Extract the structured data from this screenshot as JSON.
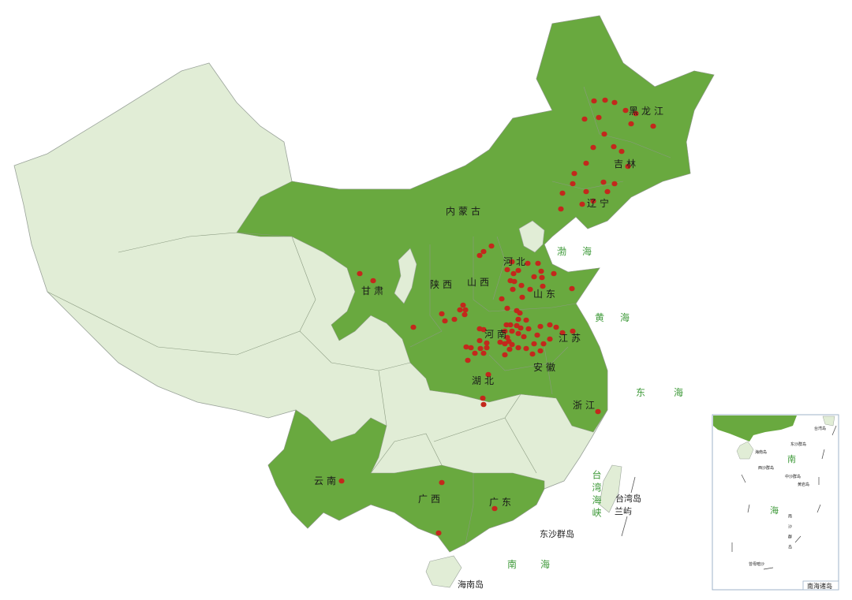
{
  "colors": {
    "highlighted": "#69a93f",
    "other": "#e1edd6",
    "dot": "#c3281c",
    "sea_label": "#3f9a3a",
    "border": "#9aa39a"
  },
  "provinces_highlighted": [
    "黑龙江",
    "吉林",
    "辽宁",
    "内蒙古",
    "河北",
    "山西",
    "陕西",
    "甘肃",
    "山东",
    "河南",
    "江苏",
    "安徽",
    "湖北",
    "浙江",
    "云南",
    "广西",
    "广东"
  ],
  "labels": {
    "heilongjiang": "黑龙江",
    "jilin": "吉林",
    "liaoning": "辽宁",
    "neimenggu": "内蒙古",
    "hebei": "河北",
    "shanxi": "山西",
    "shaanxi": "陕西",
    "gansu": "甘肃",
    "shandong": "山东",
    "henan": "河南",
    "jiangsu": "江苏",
    "anhui": "安徽",
    "hubei": "湖北",
    "zhejiang": "浙江",
    "yunnan": "云南",
    "guangxi": "广西",
    "guangdong": "广东"
  },
  "seas": {
    "bohai": "渤海",
    "huanghai": "黄海",
    "donghai": "东海",
    "taiwan_strait": "台湾海峡",
    "nanhai": "南海"
  },
  "islands": {
    "taiwan": "台湾岛",
    "lanyu": "兰屿",
    "dongsha": "东沙群岛",
    "hainan": "海南岛"
  },
  "inset": {
    "title": "南海诸岛",
    "labels": {
      "taiwan": "台湾岛",
      "dongsha": "东沙群岛",
      "hainan": "海南岛",
      "xisha": "西沙群岛",
      "zhongsha": "中沙群岛",
      "huangyan": "黄岩岛",
      "nansha": "南沙群岛",
      "zengmu": "曾母暗沙",
      "nan": "南",
      "hai": "海"
    }
  }
}
